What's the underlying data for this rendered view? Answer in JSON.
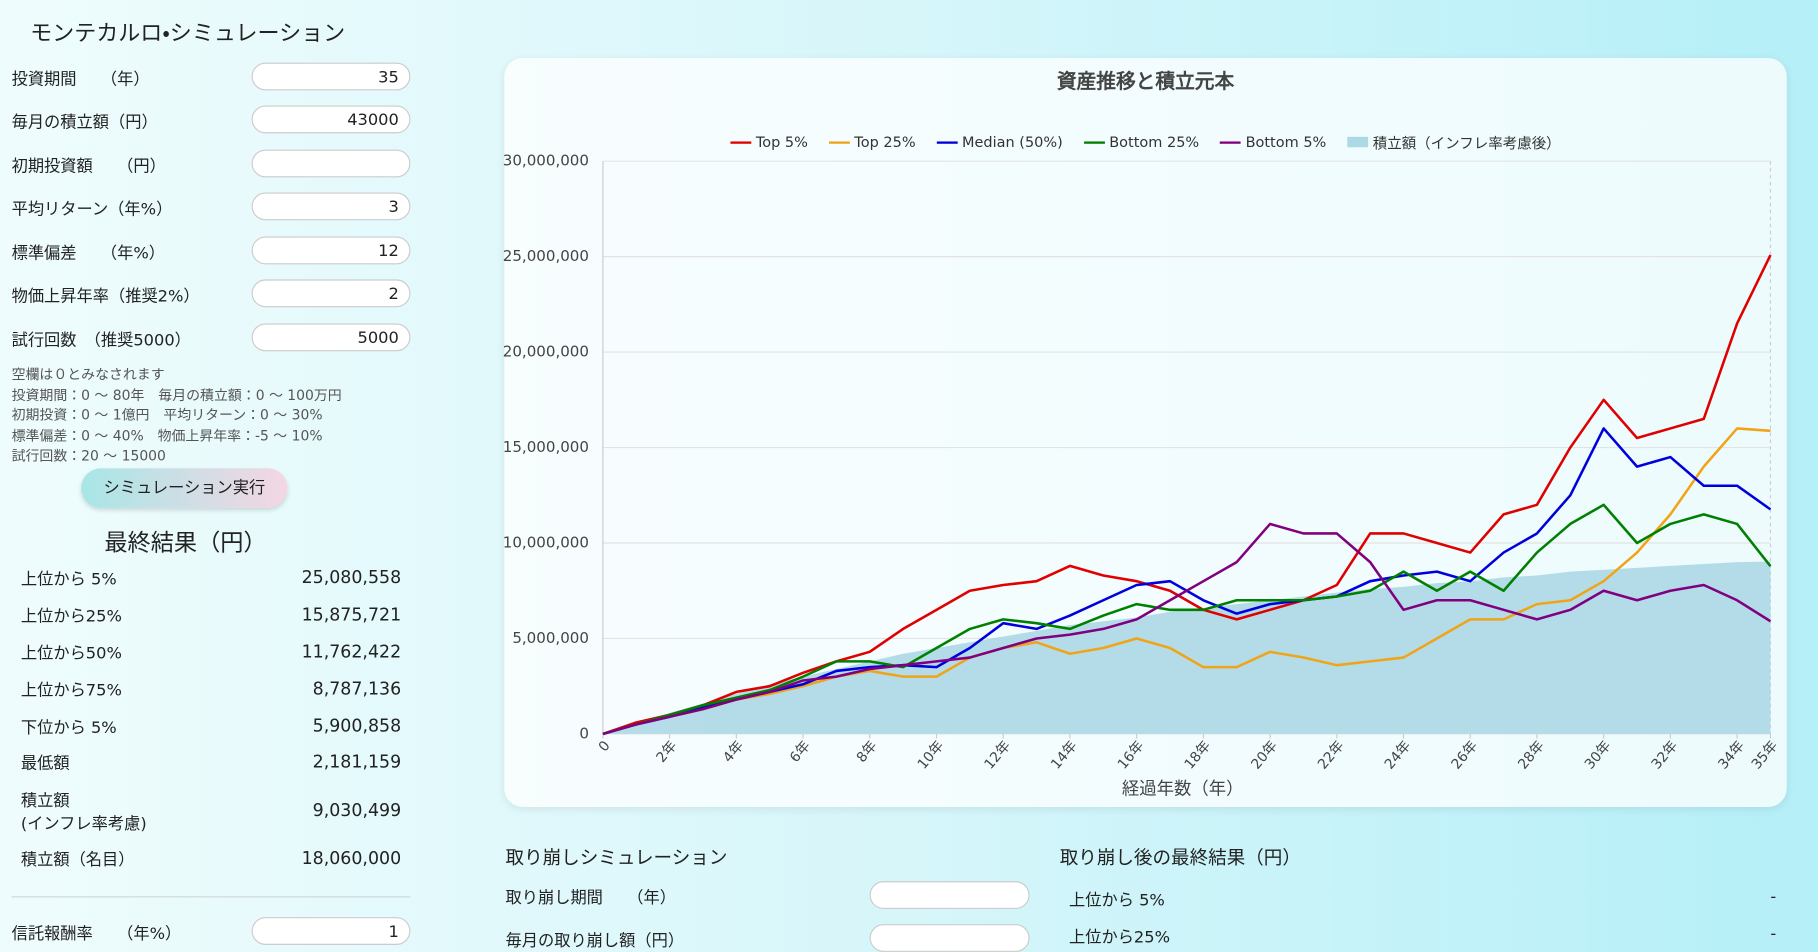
{
  "title": "モンテカルロ・シミュレーション",
  "inputs": [
    {
      "label": "投資期間　　（年）",
      "value": 35
    },
    {
      "label": "毎月の積立額（円）",
      "value": 43000
    },
    {
      "label": "初期投資額　　（円）"
    },
    {
      "label": "平均リターン（年%）",
      "value": 3
    },
    {
      "label": "標準偏差　　（年%）",
      "value": 12
    },
    {
      "label": "物価上昇年率（推奨2%）",
      "value": 2
    },
    {
      "label": "試行回数　（推奨5000）",
      "value": 5000
    }
  ],
  "notes": [
    "空欄は０とみなされます",
    "投資期間：0 〜 80年　毎月の積立額：0 〜 100万円",
    "初期投資：0 〜 1億円　平均リターン：0 〜 30%",
    "標準偏差：0 〜 40%　物価上昇年率：-5 〜 10%",
    "試行回数：20 〜 15000"
  ],
  "button": "シミュレーション実行",
  "results": {
    "title": "最終結果（円）",
    "rows": [
      {
        "label": "上位から 5%",
        "value": "25,080,558"
      },
      {
        "label": "上位から25%",
        "value": "15,875,721"
      },
      {
        "label": "上位から50%",
        "value": "11,762,422"
      },
      {
        "label": "上位から75%",
        "value": "8,787,136"
      },
      {
        "label": "下位から 5%",
        "value": "5,900,858"
      },
      {
        "label": "最低額",
        "value": "2,181,159"
      },
      {
        "label": "積立額\n(インフレ率考慮)",
        "value": "9,030,499"
      },
      {
        "label": "積立額（名目）",
        "value": "18,060,000"
      }
    ]
  },
  "fee": {
    "label": "信託報酬率　　（年%）",
    "value": 1
  },
  "withdraw": {
    "title": "取り崩しシミュレーション",
    "inputs": [
      {
        "label": "取り崩し期間　　（年）"
      },
      {
        "label": "毎月の取り崩し額（円）"
      }
    ]
  },
  "withdraw_results": {
    "title": "取り崩し後の最終結果（円）",
    "rows": [
      {
        "label": "上位から 5%",
        "value": "-"
      },
      {
        "label": "上位から25%",
        "value": "-"
      }
    ]
  },
  "chart_data": {
    "type": "line",
    "title": "資産推移と積立元本",
    "x_label": "経過年数（年）",
    "x": [
      0,
      1,
      2,
      3,
      4,
      5,
      6,
      7,
      8,
      9,
      10,
      11,
      12,
      13,
      14,
      15,
      16,
      17,
      18,
      19,
      20,
      21,
      22,
      23,
      24,
      25,
      26,
      27,
      28,
      29,
      30,
      31,
      32,
      33,
      34,
      35
    ],
    "xlim": [
      0,
      35
    ],
    "xticks": [
      0,
      {
        "value": 2,
        "label": "2年"
      },
      {
        "value": 4,
        "label": "4年"
      },
      {
        "value": 6,
        "label": "6年"
      },
      {
        "value": 8,
        "label": "8年"
      },
      {
        "value": 10,
        "label": "10年"
      },
      {
        "value": 12,
        "label": "12年"
      },
      {
        "value": 14,
        "label": "14年"
      },
      {
        "value": 16,
        "label": "16年"
      },
      {
        "value": 18,
        "label": "18年"
      },
      {
        "value": 20,
        "label": "20年"
      },
      {
        "value": 22,
        "label": "22年"
      },
      {
        "value": 24,
        "label": "24年"
      },
      {
        "value": 26,
        "label": "26年"
      },
      {
        "value": 28,
        "label": "28年"
      },
      {
        "value": 30,
        "label": "30年"
      },
      {
        "value": 32,
        "label": "32年"
      },
      {
        "value": 34,
        "label": "34年"
      },
      {
        "value": 35,
        "label": "35年"
      }
    ],
    "ylim": [
      0,
      30000000
    ],
    "yticks": [
      0,
      {
        "value": 5000000,
        "label": "5,000,000"
      },
      {
        "value": 10000000,
        "label": "10,000,000"
      },
      {
        "value": 15000000,
        "label": "15,000,000"
      },
      {
        "value": 20000000,
        "label": "20,000,000"
      },
      {
        "value": 25000000,
        "label": "25,000,000"
      },
      {
        "value": 30000000,
        "label": "30,000,000"
      }
    ],
    "grid": true,
    "series": [
      {
        "name": "Top 5%",
        "color": "#e00000",
        "values": [
          0,
          600000,
          1000000,
          1500000,
          2200000,
          2500000,
          3200000,
          3800000,
          4300000,
          5500000,
          6500000,
          7500000,
          7800000,
          8000000,
          8800000,
          8300000,
          8000000,
          7500000,
          6500000,
          6000000,
          6500000,
          7000000,
          7800000,
          10500000,
          10500000,
          10000000,
          9500000,
          11500000,
          12000000,
          15000000,
          17500000,
          15500000,
          16000000,
          16500000,
          21500000,
          25080558
        ]
      },
      {
        "name": "Top 25%",
        "color": "#f0a418",
        "values": [
          0,
          500000,
          900000,
          1300000,
          1800000,
          2100000,
          2500000,
          3000000,
          3300000,
          3000000,
          3000000,
          4000000,
          4500000,
          4800000,
          4200000,
          4500000,
          5000000,
          4500000,
          3500000,
          3500000,
          4300000,
          4000000,
          3600000,
          3800000,
          4000000,
          5000000,
          6000000,
          6000000,
          6800000,
          7000000,
          8000000,
          9500000,
          11500000,
          14000000,
          16000000,
          15875721
        ]
      },
      {
        "name": "Median (50%)",
        "color": "#0000dd",
        "values": [
          0,
          500000,
          900000,
          1400000,
          1800000,
          2200000,
          2600000,
          3300000,
          3500000,
          3600000,
          3500000,
          4500000,
          5800000,
          5500000,
          6200000,
          7000000,
          7800000,
          8000000,
          7000000,
          6300000,
          6800000,
          7000000,
          7200000,
          8000000,
          8300000,
          8500000,
          8000000,
          9500000,
          10500000,
          12500000,
          16000000,
          14000000,
          14500000,
          13000000,
          13000000,
          11762422
        ]
      },
      {
        "name": "Bottom 25%",
        "color": "#008000",
        "values": [
          0,
          500000,
          1000000,
          1500000,
          1900000,
          2300000,
          3000000,
          3800000,
          3800000,
          3500000,
          4500000,
          5500000,
          6000000,
          5800000,
          5500000,
          6200000,
          6800000,
          6500000,
          6500000,
          7000000,
          7000000,
          7000000,
          7200000,
          7500000,
          8500000,
          7500000,
          8500000,
          7500000,
          9500000,
          11000000,
          12000000,
          10000000,
          11000000,
          11500000,
          11000000,
          8787136
        ]
      },
      {
        "name": "Bottom 5%",
        "color": "#800080",
        "values": [
          0,
          500000,
          900000,
          1300000,
          1800000,
          2200000,
          2800000,
          3000000,
          3400000,
          3600000,
          3800000,
          4000000,
          4500000,
          5000000,
          5200000,
          5500000,
          6000000,
          7000000,
          8000000,
          9000000,
          11000000,
          10500000,
          10500000,
          9000000,
          6500000,
          7000000,
          7000000,
          6500000,
          6000000,
          6500000,
          7500000,
          7000000,
          7500000,
          7800000,
          7000000,
          5900858
        ]
      },
      {
        "name": "積立額（インフレ率考慮後）",
        "color": "#add8e6",
        "kind": "area",
        "values": [
          0,
          600000,
          1100000,
          1600000,
          2100000,
          2600000,
          3000000,
          3400000,
          3800000,
          4200000,
          4500000,
          4800000,
          5100000,
          5400000,
          5700000,
          5900000,
          6100000,
          6400000,
          6600000,
          6800000,
          7000000,
          7200000,
          7400000,
          7600000,
          7700000,
          7900000,
          8000000,
          8200000,
          8300000,
          8500000,
          8600000,
          8700000,
          8800000,
          8900000,
          9000000,
          9030499
        ]
      }
    ]
  }
}
